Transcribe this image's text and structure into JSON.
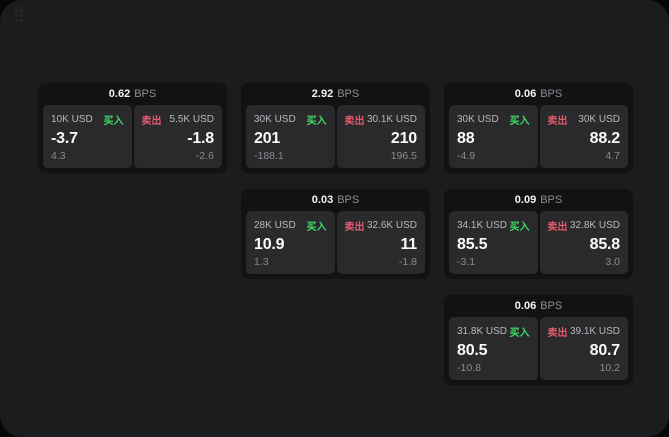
{
  "labels": {
    "buy": "买入",
    "sell": "卖出",
    "bps_suffix": "BPS"
  },
  "colors": {
    "buy_green": "#3edc68",
    "sell_red": "#e05a6d",
    "window_bg": "#1c1c1e",
    "card_bg": "#121214",
    "panel_bg": "#2a2a2c"
  },
  "cards": [
    {
      "row": 1,
      "col": 1,
      "bps": "0.62",
      "buy": {
        "amount": "10K USD",
        "value": "-3.7",
        "sub": "4.3"
      },
      "sell": {
        "amount": "5.5K USD",
        "value": "-1.8",
        "sub": "-2.6"
      }
    },
    {
      "row": 1,
      "col": 2,
      "bps": "2.92",
      "buy": {
        "amount": "30K USD",
        "value": "201",
        "sub": "-188.1"
      },
      "sell": {
        "amount": "30.1K USD",
        "value": "210",
        "sub": "196.5"
      }
    },
    {
      "row": 1,
      "col": 3,
      "bps": "0.06",
      "buy": {
        "amount": "30K USD",
        "value": "88",
        "sub": "-4.9"
      },
      "sell": {
        "amount": "30K USD",
        "value": "88.2",
        "sub": "4.7"
      }
    },
    {
      "row": 2,
      "col": 2,
      "bps": "0.03",
      "buy": {
        "amount": "28K USD",
        "value": "10.9",
        "sub": "1.3"
      },
      "sell": {
        "amount": "32.6K USD",
        "value": "11",
        "sub": "-1.8"
      }
    },
    {
      "row": 2,
      "col": 3,
      "bps": "0.09",
      "buy": {
        "amount": "34.1K USD",
        "value": "85.5",
        "sub": "-3.1"
      },
      "sell": {
        "amount": "32.8K USD",
        "value": "85.8",
        "sub": "3.0"
      }
    },
    {
      "row": 3,
      "col": 3,
      "bps": "0.06",
      "buy": {
        "amount": "31.8K USD",
        "value": "80.5",
        "sub": "-10.8"
      },
      "sell": {
        "amount": "39.1K USD",
        "value": "80.7",
        "sub": "10.2"
      }
    }
  ]
}
